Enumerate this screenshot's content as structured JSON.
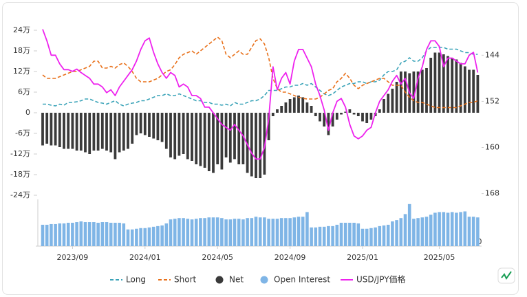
{
  "chart_data": {
    "type": "combo",
    "categories": [
      null,
      null,
      null,
      null,
      null,
      null,
      null,
      "2023/09",
      null,
      null,
      null,
      null,
      null,
      null,
      null,
      null,
      null,
      null,
      null,
      null,
      null,
      null,
      null,
      null,
      "2024/01",
      null,
      null,
      null,
      null,
      null,
      null,
      null,
      null,
      null,
      null,
      null,
      null,
      null,
      null,
      null,
      null,
      "2024/05",
      null,
      null,
      null,
      null,
      null,
      null,
      null,
      null,
      null,
      null,
      null,
      null,
      null,
      null,
      null,
      null,
      "2024/09",
      null,
      null,
      null,
      null,
      null,
      null,
      null,
      null,
      null,
      null,
      null,
      null,
      null,
      null,
      null,
      null,
      "2025/01",
      null,
      null,
      null,
      null,
      null,
      null,
      null,
      null,
      null,
      null,
      null,
      null,
      null,
      null,
      null,
      null,
      null,
      "2025/05",
      null,
      null,
      null,
      null,
      null,
      null,
      null,
      null,
      null
    ],
    "ylim": [
      -252000,
      268000
    ],
    "yticks": [
      {
        "value": 240000,
        "label": "24万"
      },
      {
        "value": 180000,
        "label": "18万"
      },
      {
        "value": 120000,
        "label": "12万"
      },
      {
        "value": 60000,
        "label": "6万"
      },
      0,
      {
        "value": -60000,
        "label": "-6万"
      },
      {
        "value": -120000,
        "label": "-12万"
      },
      {
        "value": -180000,
        "label": "-18万"
      },
      {
        "value": -240000,
        "label": "-24万"
      }
    ],
    "y2lim": [
      138,
      169
    ],
    "y2ticks": [
      144,
      152,
      160,
      168
    ],
    "y2_inverted": true,
    "oi_ylim": [
      0,
      350000
    ],
    "oi_yticks": [
      0
    ],
    "series": [
      {
        "name": "Long",
        "kind": "line",
        "dash": true,
        "color": "#3aa3b8",
        "values": [
          25000,
          25000,
          22000,
          20000,
          25000,
          22000,
          30000,
          30000,
          32000,
          35000,
          40000,
          40000,
          35000,
          30000,
          28000,
          25000,
          30000,
          35000,
          25000,
          20000,
          25000,
          28000,
          30000,
          35000,
          35000,
          40000,
          45000,
          50000,
          50000,
          55000,
          50000,
          50000,
          55000,
          50000,
          45000,
          40000,
          35000,
          35000,
          30000,
          30000,
          25000,
          25000,
          22000,
          25000,
          20000,
          30000,
          25000,
          25000,
          30000,
          35000,
          35000,
          40000,
          50000,
          65000,
          65000,
          65000,
          70000,
          75000,
          75000,
          80000,
          80000,
          85000,
          80000,
          85000,
          75000,
          65000,
          55000,
          50000,
          55000,
          65000,
          75000,
          80000,
          85000,
          85000,
          90000,
          90000,
          85000,
          90000,
          90000,
          95000,
          110000,
          120000,
          120000,
          125000,
          145000,
          150000,
          160000,
          150000,
          150000,
          160000,
          180000,
          190000,
          190000,
          190000,
          190000,
          185000,
          185000,
          185000,
          180000,
          175000,
          175000,
          170000,
          170000
        ]
      },
      {
        "name": "Short",
        "kind": "line",
        "dash": true,
        "color": "#e8701a",
        "values": [
          110000,
          100000,
          100000,
          100000,
          105000,
          110000,
          115000,
          120000,
          120000,
          125000,
          130000,
          135000,
          150000,
          150000,
          130000,
          130000,
          135000,
          130000,
          140000,
          145000,
          135000,
          120000,
          100000,
          90000,
          90000,
          90000,
          95000,
          100000,
          110000,
          120000,
          125000,
          140000,
          160000,
          170000,
          175000,
          180000,
          170000,
          180000,
          190000,
          200000,
          210000,
          220000,
          210000,
          170000,
          160000,
          170000,
          180000,
          170000,
          170000,
          190000,
          210000,
          215000,
          200000,
          160000,
          100000,
          70000,
          60000,
          60000,
          55000,
          50000,
          45000,
          42000,
          40000,
          40000,
          40000,
          45000,
          55000,
          65000,
          70000,
          90000,
          100000,
          115000,
          100000,
          80000,
          70000,
          80000,
          85000,
          90000,
          95000,
          100000,
          100000,
          90000,
          80000,
          80000,
          80000,
          60000,
          45000,
          35000,
          30000,
          30000,
          25000,
          20000,
          15000,
          15000,
          15000,
          15000,
          15000,
          15000,
          20000,
          25000,
          30000,
          30000,
          35000
        ]
      },
      {
        "name": "Net",
        "kind": "bar",
        "color": "#3a3a3a",
        "values": [
          -95000,
          -90000,
          -95000,
          -95000,
          -100000,
          -105000,
          -105000,
          -105000,
          -110000,
          -110000,
          -115000,
          -120000,
          -110000,
          -110000,
          -105000,
          -110000,
          -115000,
          -135000,
          -115000,
          -110000,
          -105000,
          -90000,
          -65000,
          -60000,
          -65000,
          -70000,
          -75000,
          -80000,
          -85000,
          -105000,
          -130000,
          -135000,
          -125000,
          -120000,
          -135000,
          -140000,
          -150000,
          -155000,
          -160000,
          -170000,
          -175000,
          -150000,
          -165000,
          -130000,
          -145000,
          -135000,
          -150000,
          -150000,
          -175000,
          -185000,
          -190000,
          -190000,
          -180000,
          -80000,
          -10000,
          10000,
          20000,
          30000,
          40000,
          45000,
          50000,
          45000,
          30000,
          20000,
          -10000,
          -25000,
          -40000,
          -65000,
          -40000,
          -20000,
          -5000,
          3000,
          10000,
          -5000,
          -10000,
          -25000,
          -30000,
          -20000,
          -10000,
          10000,
          40000,
          55000,
          70000,
          90000,
          120000,
          120000,
          115000,
          120000,
          120000,
          125000,
          130000,
          160000,
          175000,
          175000,
          170000,
          165000,
          160000,
          155000,
          145000,
          135000,
          125000,
          125000,
          110000
        ]
      },
      {
        "name": "Open Interest",
        "kind": "bar",
        "axis": "oi",
        "color": "#7fb5e6",
        "values": [
          160000,
          160000,
          165000,
          165000,
          170000,
          170000,
          175000,
          175000,
          180000,
          185000,
          180000,
          180000,
          180000,
          175000,
          180000,
          180000,
          175000,
          175000,
          175000,
          170000,
          125000,
          125000,
          130000,
          135000,
          135000,
          140000,
          145000,
          150000,
          155000,
          170000,
          200000,
          205000,
          210000,
          210000,
          205000,
          200000,
          205000,
          210000,
          210000,
          215000,
          215000,
          215000,
          210000,
          200000,
          200000,
          205000,
          205000,
          200000,
          210000,
          210000,
          220000,
          215000,
          215000,
          205000,
          205000,
          205000,
          210000,
          210000,
          210000,
          215000,
          220000,
          220000,
          255000,
          140000,
          140000,
          145000,
          145000,
          150000,
          150000,
          160000,
          175000,
          175000,
          175000,
          175000,
          170000,
          130000,
          130000,
          135000,
          140000,
          150000,
          155000,
          160000,
          185000,
          195000,
          210000,
          240000,
          315000,
          205000,
          210000,
          215000,
          220000,
          235000,
          250000,
          255000,
          255000,
          250000,
          255000,
          250000,
          255000,
          260000,
          220000,
          220000,
          215000
        ]
      },
      {
        "name": "USD/JPY価格",
        "kind": "line",
        "axis": "y2",
        "color": "#ee22ee",
        "values": [
          139.5,
          141.5,
          144,
          144,
          145.5,
          146.5,
          146.5,
          146.8,
          146.4,
          147,
          147.5,
          148,
          149,
          149,
          149.5,
          150.5,
          150,
          151,
          149.5,
          148.5,
          147.5,
          146.5,
          145,
          143,
          141.5,
          141,
          143.5,
          145.5,
          147,
          148,
          147,
          147.5,
          149.5,
          149,
          149.5,
          151,
          151,
          151.5,
          153,
          153,
          154,
          155,
          156,
          156.5,
          157,
          156,
          157,
          158,
          159.5,
          161,
          162,
          162,
          160,
          155,
          146,
          150,
          148,
          147,
          149,
          145,
          143,
          143,
          144.5,
          146,
          149,
          151,
          153.5,
          157,
          154,
          152,
          151.5,
          153,
          156,
          158,
          158.5,
          158,
          157,
          156.5,
          154,
          152,
          151,
          150,
          148.5,
          147.5,
          149,
          148,
          150.5,
          151.5,
          148,
          146,
          143,
          141.5,
          141.5,
          142.5,
          146,
          144.5,
          144.5,
          145,
          145.5,
          145.5,
          144,
          143.5,
          147
        ]
      }
    ]
  }
}
